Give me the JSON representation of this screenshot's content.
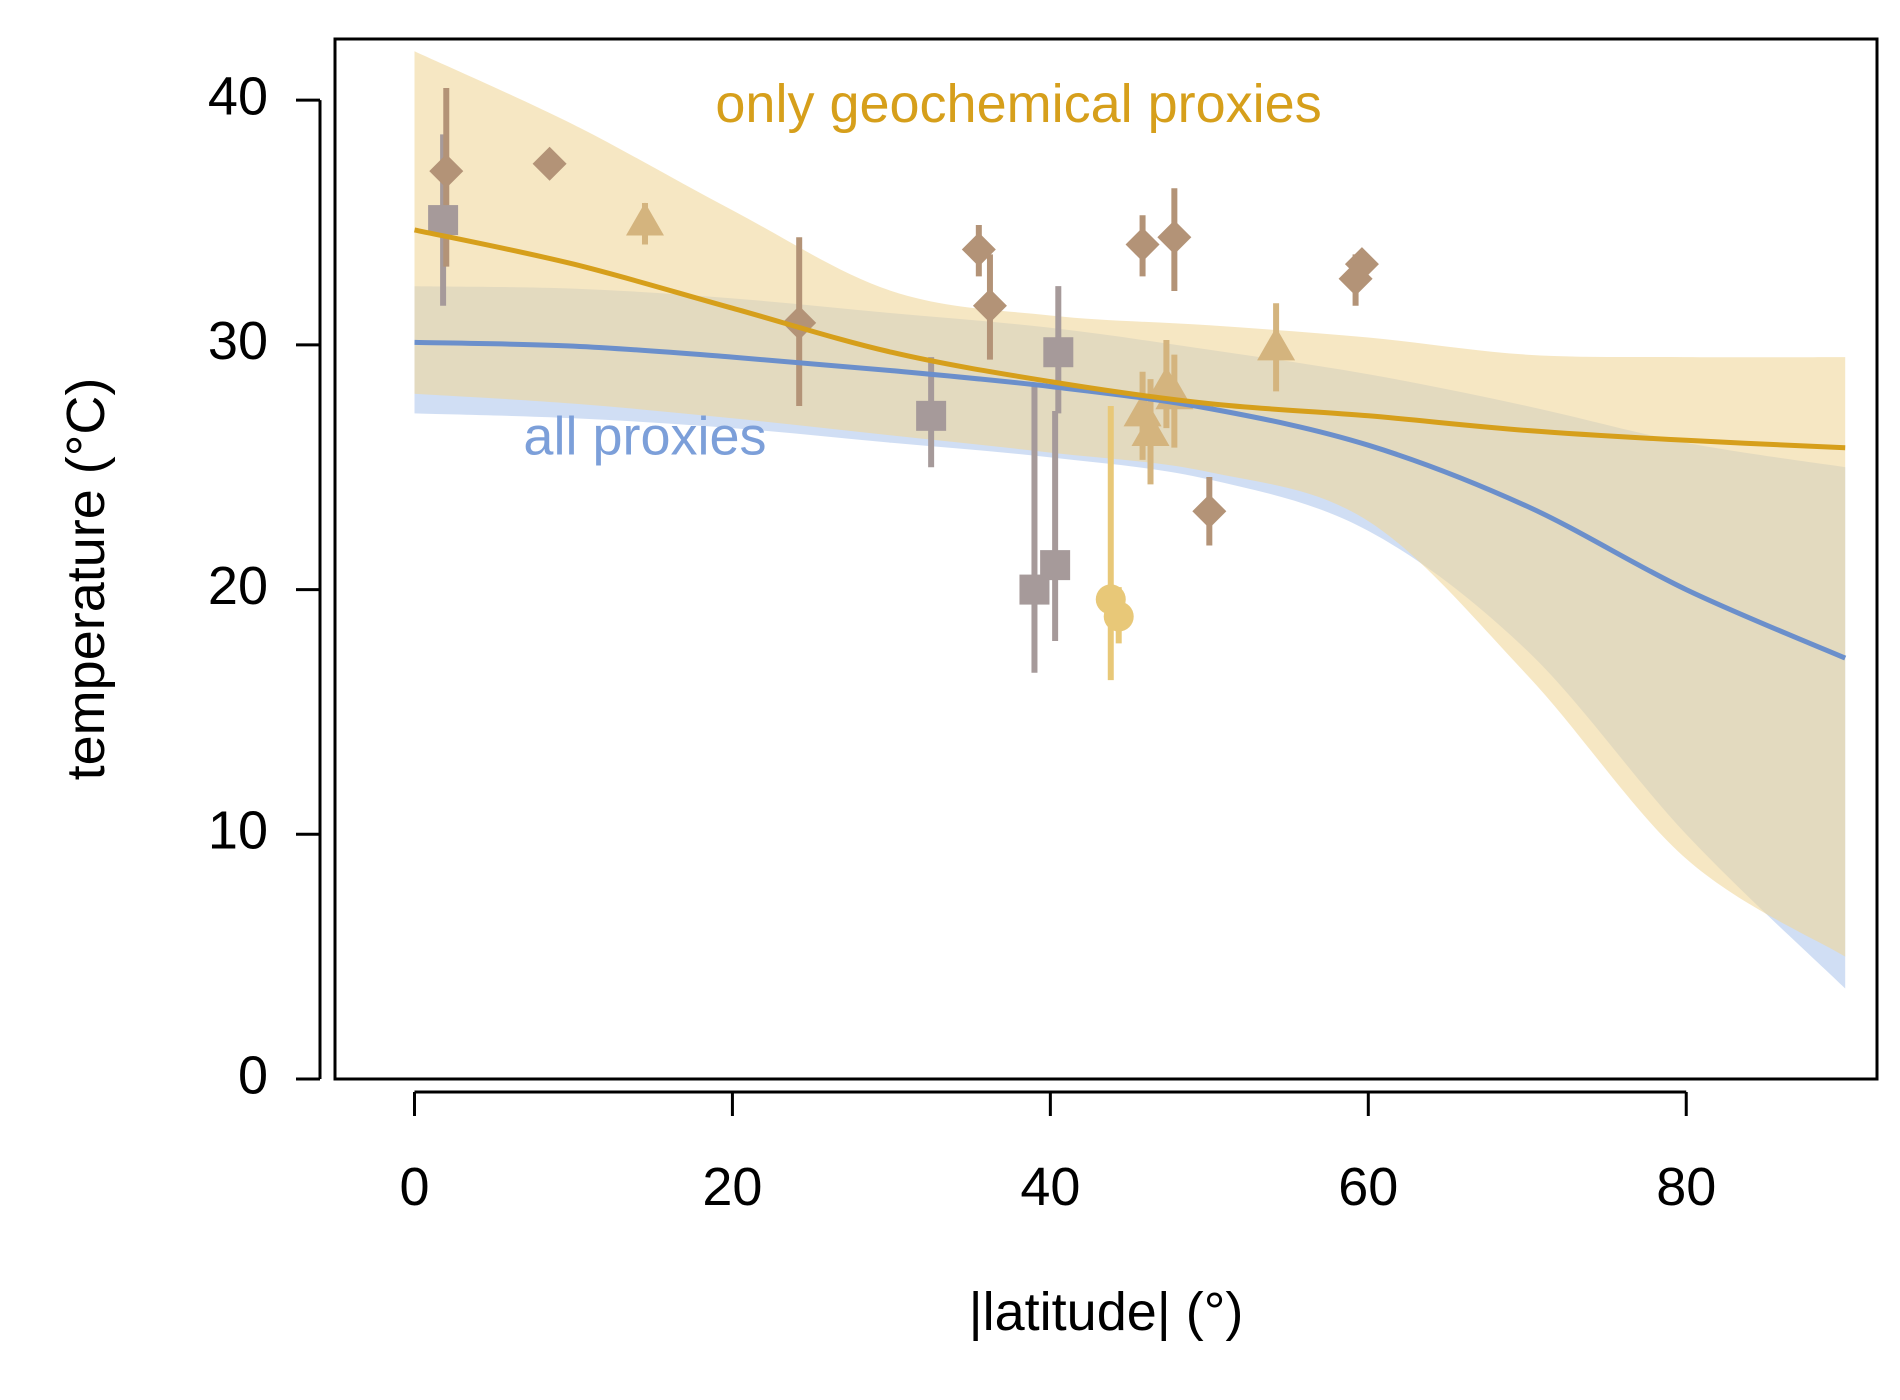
{
  "chart_data": {
    "type": "scatter",
    "title": "",
    "xlabel": "|latitude| (°)",
    "ylabel": "temperature (°C)",
    "xlim": [
      -5,
      92
    ],
    "ylim": [
      0,
      42.5
    ],
    "xticks": [
      0,
      20,
      40,
      60,
      80
    ],
    "yticks": [
      0,
      10,
      20,
      30,
      40
    ],
    "grid": false,
    "annotations": [
      {
        "name": "geochem-label",
        "text": "only geochemical proxies",
        "color": "#d69f1b",
        "x": 38,
        "y": 39.7
      },
      {
        "name": "all-proxies-label",
        "text": "all proxies",
        "color": "#7c9fd9",
        "x": 14.5,
        "y": 26.1
      }
    ],
    "series": [
      {
        "name": "all proxies",
        "kind": "fit",
        "color": "#6b8fcb",
        "band_color": "#c8d8f2",
        "x": [
          0,
          10,
          20,
          30,
          40,
          50,
          60,
          70,
          80,
          90
        ],
        "y": [
          30.1,
          29.95,
          29.5,
          28.95,
          28.3,
          27.4,
          25.9,
          23.4,
          20.0,
          17.2
        ],
        "lower": [
          27.2,
          27.0,
          26.6,
          26.0,
          25.4,
          24.5,
          22.4,
          17.5,
          10.0,
          3.7
        ],
        "upper": [
          32.4,
          32.3,
          31.9,
          31.3,
          30.7,
          29.8,
          28.8,
          27.5,
          26.0,
          25.0
        ]
      },
      {
        "name": "only geochemical proxies",
        "kind": "fit",
        "color": "#d69f1b",
        "band_color": "#f0d79b",
        "x": [
          0,
          10,
          20,
          30,
          40,
          50,
          60,
          70,
          80,
          90
        ],
        "y": [
          34.7,
          33.3,
          31.5,
          29.7,
          28.5,
          27.6,
          27.1,
          26.5,
          26.1,
          25.8
        ],
        "lower": [
          28.0,
          27.6,
          27.0,
          26.3,
          25.6,
          24.8,
          22.8,
          16.5,
          9.0,
          5.0
        ],
        "upper": [
          42.0,
          39.0,
          35.5,
          32.2,
          31.2,
          30.8,
          30.3,
          29.6,
          29.5,
          29.5
        ]
      },
      {
        "name": "squares",
        "kind": "points",
        "marker": "square",
        "color": "#a69a9a",
        "points": [
          {
            "x": 1.8,
            "y": 35.1,
            "lo": 31.6,
            "hi": 38.6
          },
          {
            "x": 32.5,
            "y": 27.1,
            "lo": 25.0,
            "hi": 29.5
          },
          {
            "x": 39.0,
            "y": 20.0,
            "lo": 16.6,
            "hi": 28.3
          },
          {
            "x": 40.3,
            "y": 21.0,
            "lo": 17.9,
            "hi": 27.3
          },
          {
            "x": 40.5,
            "y": 29.7,
            "lo": 27.2,
            "hi": 32.4
          }
        ]
      },
      {
        "name": "diamonds",
        "kind": "points",
        "marker": "diamond",
        "color": "#b39377",
        "points": [
          {
            "x": 2.0,
            "y": 37.1,
            "lo": 33.2,
            "hi": 40.5
          },
          {
            "x": 8.5,
            "y": 37.4,
            "lo": null,
            "hi": null
          },
          {
            "x": 24.2,
            "y": 30.9,
            "lo": 27.5,
            "hi": 34.4
          },
          {
            "x": 35.5,
            "y": 33.9,
            "lo": 32.8,
            "hi": 34.9
          },
          {
            "x": 36.2,
            "y": 31.6,
            "lo": 29.4,
            "hi": 33.7
          },
          {
            "x": 45.8,
            "y": 34.1,
            "lo": 32.8,
            "hi": 35.3
          },
          {
            "x": 47.8,
            "y": 34.4,
            "lo": 32.2,
            "hi": 36.4
          },
          {
            "x": 50.0,
            "y": 23.2,
            "lo": 21.8,
            "hi": 24.6
          },
          {
            "x": 59.2,
            "y": 32.7,
            "lo": 31.6,
            "hi": 33.7
          },
          {
            "x": 59.6,
            "y": 33.3,
            "lo": null,
            "hi": null
          }
        ]
      },
      {
        "name": "triangles",
        "kind": "points",
        "marker": "triangle",
        "color": "#d4b47e",
        "points": [
          {
            "x": 14.5,
            "y": 35.0,
            "lo": 34.1,
            "hi": 35.8
          },
          {
            "x": 45.8,
            "y": 27.2,
            "lo": 25.3,
            "hi": 28.9
          },
          {
            "x": 46.3,
            "y": 26.4,
            "lo": 24.3,
            "hi": 28.6
          },
          {
            "x": 47.3,
            "y": 28.3,
            "lo": 26.6,
            "hi": 30.2
          },
          {
            "x": 47.8,
            "y": 27.9,
            "lo": 25.8,
            "hi": 29.6
          },
          {
            "x": 54.2,
            "y": 29.9,
            "lo": 28.1,
            "hi": 31.7
          }
        ]
      },
      {
        "name": "circles",
        "kind": "points",
        "marker": "circle",
        "color": "#e8c878",
        "points": [
          {
            "x": 43.8,
            "y": 19.6,
            "lo": 16.3,
            "hi": 27.5
          },
          {
            "x": 44.3,
            "y": 18.9,
            "lo": 17.8,
            "hi": 20.1
          }
        ]
      }
    ]
  }
}
